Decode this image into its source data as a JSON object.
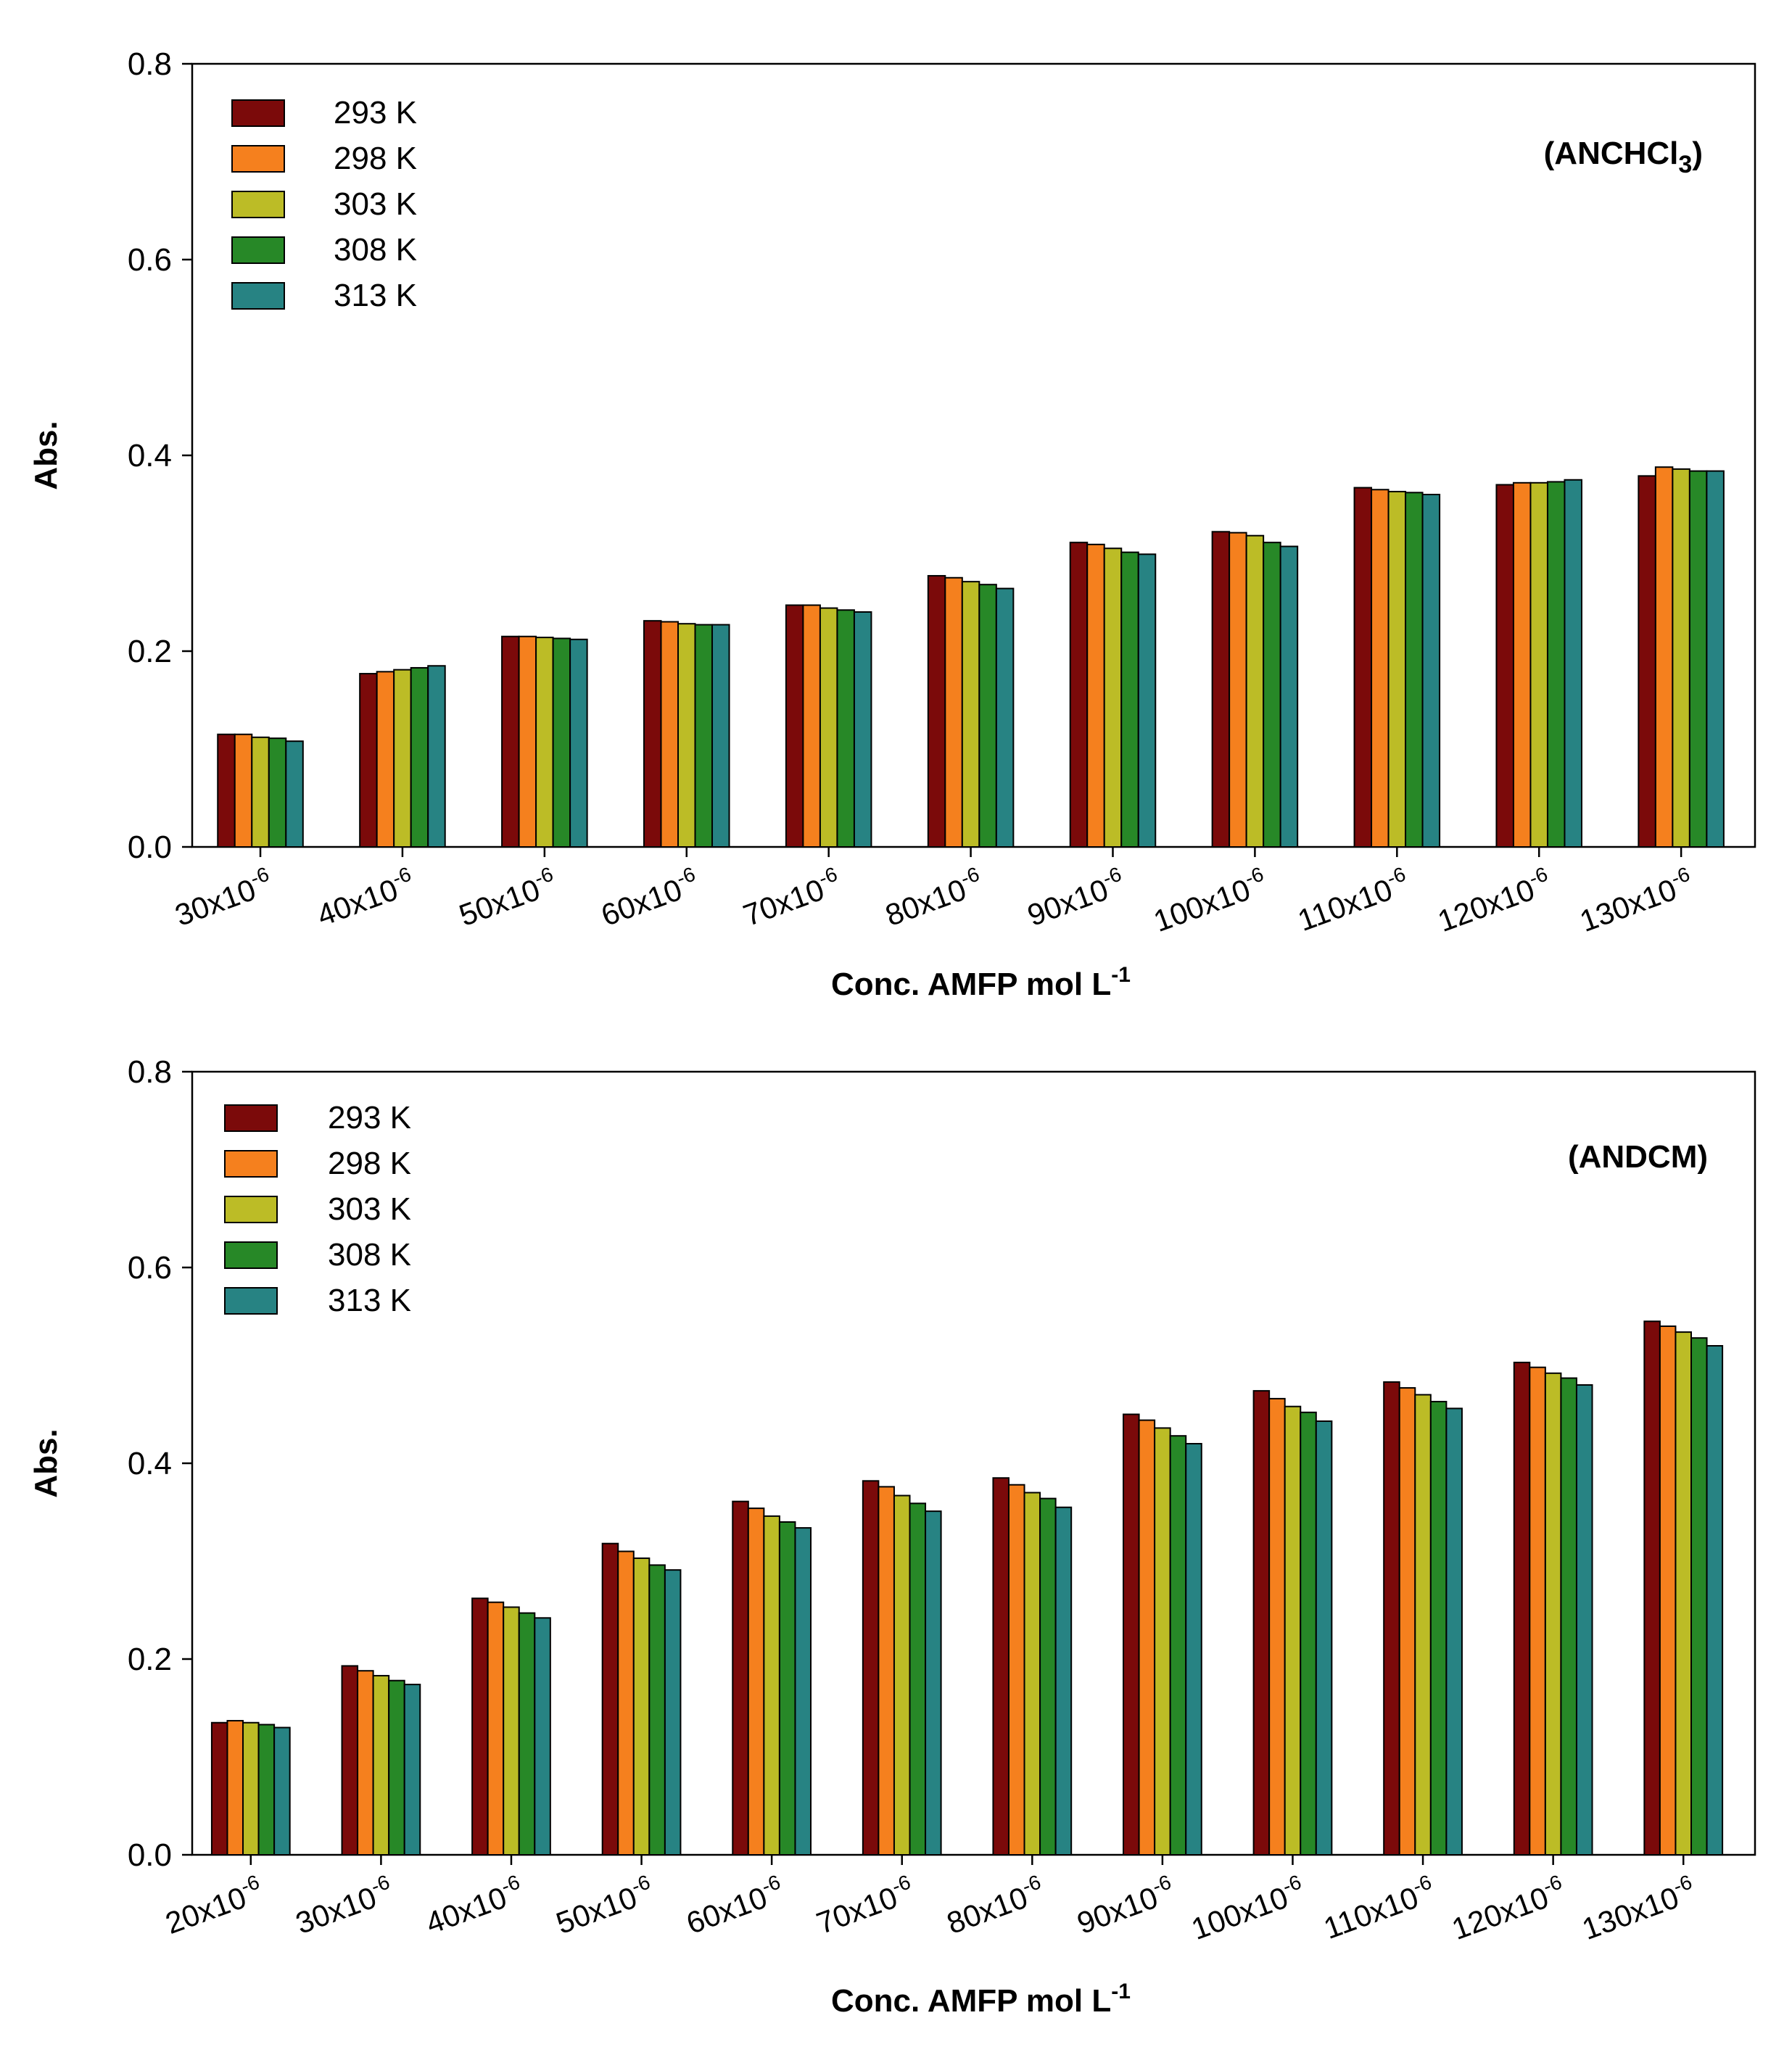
{
  "colors": {
    "293 K": "#7b0a0a",
    "298 K": "#f5801e",
    "303 K": "#bcbc26",
    "308 K": "#278827",
    "313 K": "#278383"
  },
  "chart_data": [
    {
      "type": "bar",
      "title": "",
      "annotation_main": "(ANCHCl",
      "annotation_sub": "3",
      "annotation_tail": ")",
      "xlabel_main": "Conc. AMFP mol L",
      "xlabel_sup": "-1",
      "ylabel": "Abs.",
      "ylim": [
        0.0,
        0.8
      ],
      "yticks": [
        "0.0",
        "0.2",
        "0.4",
        "0.6",
        "0.8"
      ],
      "legend_position": "top-left",
      "categories": [
        {
          "base": "30x10",
          "exp": "-6"
        },
        {
          "base": "40x10",
          "exp": "-6"
        },
        {
          "base": "50x10",
          "exp": "-6"
        },
        {
          "base": "60x10",
          "exp": "-6"
        },
        {
          "base": "70x10",
          "exp": "-6"
        },
        {
          "base": "80x10",
          "exp": "-6"
        },
        {
          "base": "90x10",
          "exp": "-6"
        },
        {
          "base": "100x10",
          "exp": "-6"
        },
        {
          "base": "110x10",
          "exp": "-6"
        },
        {
          "base": "120x10",
          "exp": "-6"
        },
        {
          "base": "130x10",
          "exp": "-6"
        }
      ],
      "series": [
        {
          "name": "293 K",
          "values": [
            0.115,
            0.177,
            0.215,
            0.231,
            0.247,
            0.277,
            0.311,
            0.322,
            0.367,
            0.37,
            0.379
          ]
        },
        {
          "name": "298 K",
          "values": [
            0.115,
            0.179,
            0.215,
            0.23,
            0.247,
            0.275,
            0.309,
            0.321,
            0.365,
            0.372,
            0.388
          ]
        },
        {
          "name": "303 K",
          "values": [
            0.112,
            0.181,
            0.214,
            0.228,
            0.244,
            0.271,
            0.305,
            0.318,
            0.363,
            0.372,
            0.386
          ]
        },
        {
          "name": "308 K",
          "values": [
            0.111,
            0.183,
            0.213,
            0.227,
            0.242,
            0.268,
            0.301,
            0.311,
            0.362,
            0.373,
            0.384
          ]
        },
        {
          "name": "313 K",
          "values": [
            0.108,
            0.185,
            0.212,
            0.227,
            0.24,
            0.264,
            0.299,
            0.307,
            0.36,
            0.375,
            0.384
          ]
        }
      ]
    },
    {
      "type": "bar",
      "title": "",
      "annotation_main": "(ANDCM)",
      "annotation_sub": "",
      "annotation_tail": "",
      "xlabel_main": "Conc. AMFP mol L",
      "xlabel_sup": "-1",
      "ylabel": "Abs.",
      "ylim": [
        0.0,
        0.8
      ],
      "yticks": [
        "0.0",
        "0.2",
        "0.4",
        "0.6",
        "0.8"
      ],
      "legend_position": "top-left",
      "categories": [
        {
          "base": "20x10",
          "exp": "-6"
        },
        {
          "base": "30x10",
          "exp": "-6"
        },
        {
          "base": "40x10",
          "exp": "-6"
        },
        {
          "base": "50x10",
          "exp": "-6"
        },
        {
          "base": "60x10",
          "exp": "-6"
        },
        {
          "base": "70x10",
          "exp": "-6"
        },
        {
          "base": "80x10",
          "exp": "-6"
        },
        {
          "base": "90x10",
          "exp": "-6"
        },
        {
          "base": "100x10",
          "exp": "-6"
        },
        {
          "base": "110x10",
          "exp": "-6"
        },
        {
          "base": "120x10",
          "exp": "-6"
        },
        {
          "base": "130x10",
          "exp": "-6"
        }
      ],
      "series": [
        {
          "name": "293 K",
          "values": [
            0.135,
            0.193,
            0.262,
            0.318,
            0.361,
            0.382,
            0.385,
            0.45,
            0.474,
            0.483,
            0.503,
            0.545
          ]
        },
        {
          "name": "298 K",
          "values": [
            0.137,
            0.188,
            0.258,
            0.31,
            0.354,
            0.376,
            0.378,
            0.444,
            0.466,
            0.477,
            0.498,
            0.54
          ]
        },
        {
          "name": "303 K",
          "values": [
            0.135,
            0.183,
            0.253,
            0.303,
            0.346,
            0.367,
            0.37,
            0.436,
            0.458,
            0.47,
            0.492,
            0.534
          ]
        },
        {
          "name": "308 K",
          "values": [
            0.133,
            0.178,
            0.247,
            0.296,
            0.34,
            0.359,
            0.364,
            0.428,
            0.452,
            0.463,
            0.487,
            0.528
          ]
        },
        {
          "name": "313 K",
          "values": [
            0.13,
            0.174,
            0.242,
            0.291,
            0.334,
            0.351,
            0.355,
            0.42,
            0.443,
            0.456,
            0.48,
            0.52
          ]
        }
      ]
    }
  ]
}
